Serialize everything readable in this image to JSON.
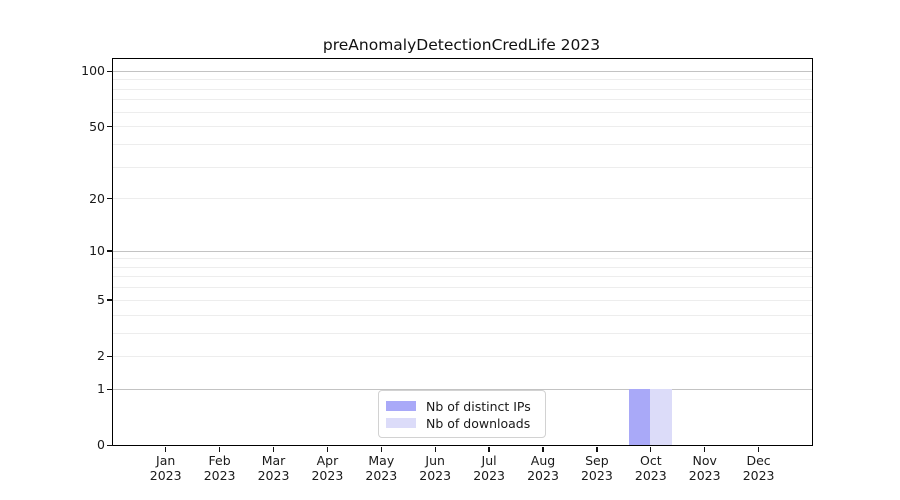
{
  "title": "preAnomalyDetectionCredLife 2023",
  "chart_data": {
    "type": "bar",
    "title": "preAnomalyDetectionCredLife 2023",
    "categories": [
      "Jan 2023",
      "Feb 2023",
      "Mar 2023",
      "Apr 2023",
      "May 2023",
      "Jun 2023",
      "Jul 2023",
      "Aug 2023",
      "Sep 2023",
      "Oct 2023",
      "Nov 2023",
      "Dec 2023"
    ],
    "series": [
      {
        "name": "Nb of distinct IPs",
        "color": "#a9a9f8",
        "values": [
          0,
          0,
          0,
          0,
          0,
          0,
          0,
          0,
          0,
          1,
          0,
          0
        ]
      },
      {
        "name": "Nb of downloads",
        "color": "#dcdcf9",
        "values": [
          0,
          0,
          0,
          0,
          0,
          0,
          0,
          0,
          0,
          1,
          0,
          0
        ]
      }
    ],
    "xlabel": "",
    "ylabel": "",
    "yscale": "log1p",
    "ylim": [
      0,
      116
    ],
    "y_ticks": [
      0,
      1,
      2,
      5,
      10,
      20,
      50,
      100
    ],
    "y_major_gridlines": [
      1,
      10,
      100
    ],
    "y_minor_gridlines": [
      2,
      3,
      4,
      5,
      6,
      7,
      8,
      9,
      20,
      30,
      40,
      50,
      60,
      70,
      80,
      90
    ],
    "grid": true,
    "legend_position": "lower center"
  },
  "colors": {
    "major_grid": "#c3c3c3",
    "minor_grid": "#ededed",
    "spine": "#000000",
    "background": "#ffffff"
  }
}
